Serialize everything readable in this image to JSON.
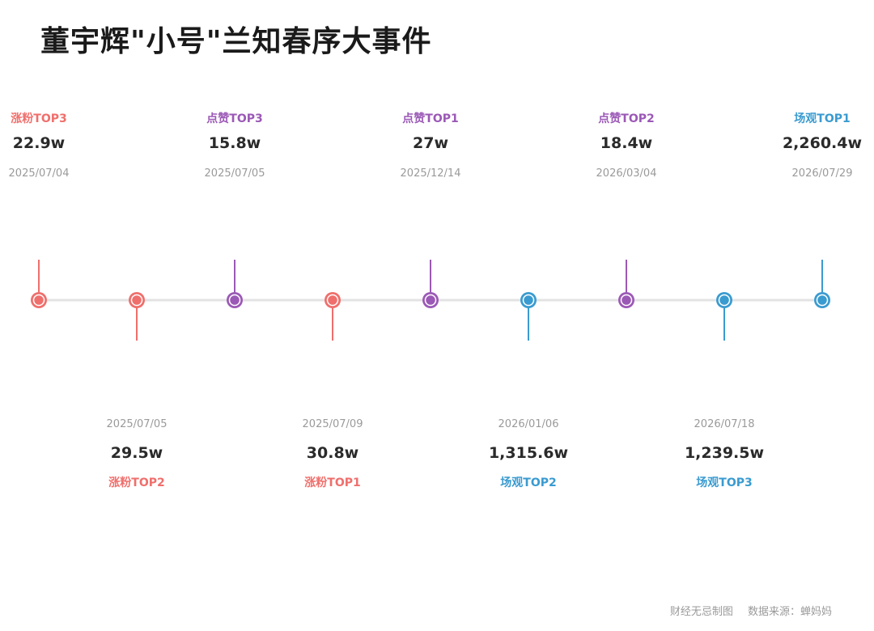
{
  "title": "董宇辉\"小号\"兰知春序大事件",
  "colors": {
    "red": "#ef6f6c",
    "purple": "#9b59b6",
    "blue": "#3a9bd0",
    "axis": "#e3e3e3"
  },
  "events": [
    {
      "category": "涨粉TOP3",
      "value": "22.9w",
      "date": "2025/07/04",
      "side": "top",
      "color": "red"
    },
    {
      "category": "涨粉TOP2",
      "value": "29.5w",
      "date": "2025/07/05",
      "side": "bottom",
      "color": "red"
    },
    {
      "category": "点赞TOP3",
      "value": "15.8w",
      "date": "2025/07/05",
      "side": "top",
      "color": "purple"
    },
    {
      "category": "涨粉TOP1",
      "value": "30.8w",
      "date": "2025/07/09",
      "side": "bottom",
      "color": "red"
    },
    {
      "category": "点赞TOP1",
      "value": "27w",
      "date": "2025/12/14",
      "side": "top",
      "color": "purple"
    },
    {
      "category": "场观TOP2",
      "value": "1,315.6w",
      "date": "2026/01/06",
      "side": "bottom",
      "color": "blue"
    },
    {
      "category": "点赞TOP2",
      "value": "18.4w",
      "date": "2026/03/04",
      "side": "top",
      "color": "purple"
    },
    {
      "category": "场观TOP3",
      "value": "1,239.5w",
      "date": "2026/07/18",
      "side": "bottom",
      "color": "blue"
    },
    {
      "category": "场观TOP1",
      "value": "2,260.4w",
      "date": "2026/07/29",
      "side": "top",
      "color": "blue"
    }
  ],
  "footer": {
    "credit": "财经无忌制图",
    "source": "数据来源：蝉妈妈"
  }
}
